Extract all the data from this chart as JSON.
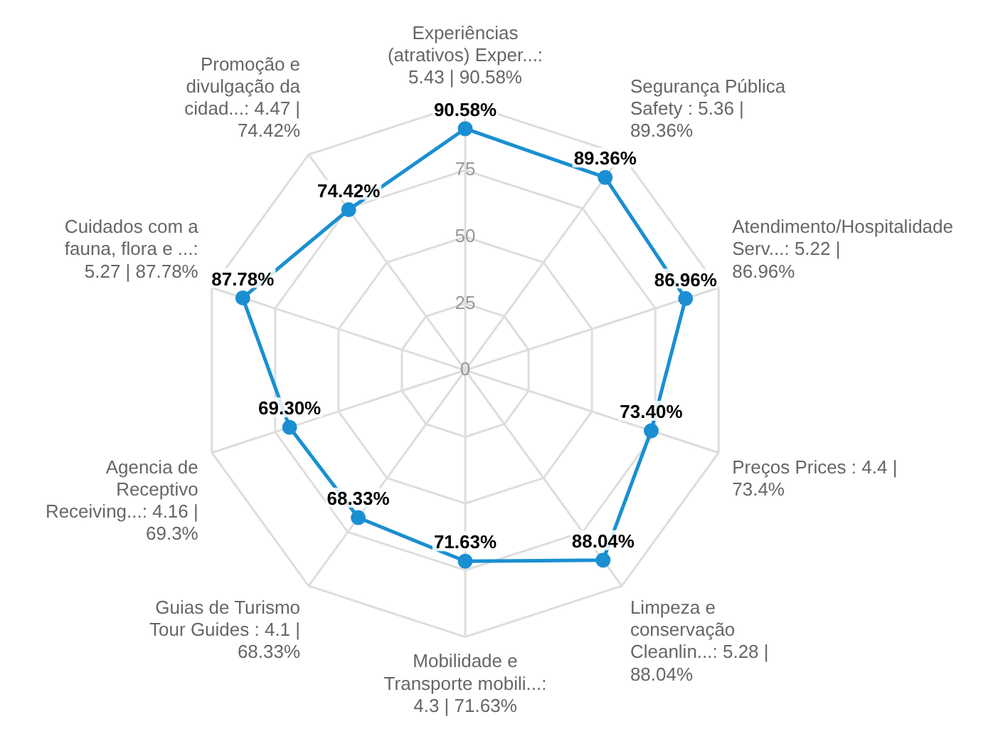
{
  "chart_data": {
    "type": "radar",
    "categories": [
      "Experiências (atrativos) Exper...: 5.43 | 90.58%",
      "Segurança Pública Safety : 5.36 | 89.36%",
      "Atendimento/Hospitalidade Serv...: 5.22 | 86.96%",
      "Preços Prices : 4.4 | 73.4%",
      "Limpeza e conservação Cleanlin...: 5.28 | 88.04%",
      "Mobilidade e Transporte mobili...: 4.3 | 71.63%",
      "Guias de Turismo Tour Guides : 4.1 | 68.33%",
      "Agencia de Receptivo Receiving...: 4.16 | 69.3%",
      "Cuidados com a fauna, flora e ...: 5.27 | 87.78%",
      "Promoção e divulgação da cidad...: 4.47 | 74.42%"
    ],
    "series": [
      {
        "color": "#1a8fd1",
        "values": [
          90.58,
          89.36,
          86.96,
          73.4,
          88.04,
          71.63,
          68.33,
          69.3,
          87.78,
          74.42
        ],
        "value_labels": [
          "90.58%",
          "89.36%",
          "86.96%",
          "73.40%",
          "88.04%",
          "71.63%",
          "68.33%",
          "69.30%",
          "87.78%",
          "74.42%"
        ]
      }
    ],
    "ylim": [
      0,
      100
    ],
    "yticks": [
      0,
      25,
      50,
      75
    ],
    "grid": true,
    "legend": false,
    "marker": "circle",
    "line_style": "solid"
  }
}
